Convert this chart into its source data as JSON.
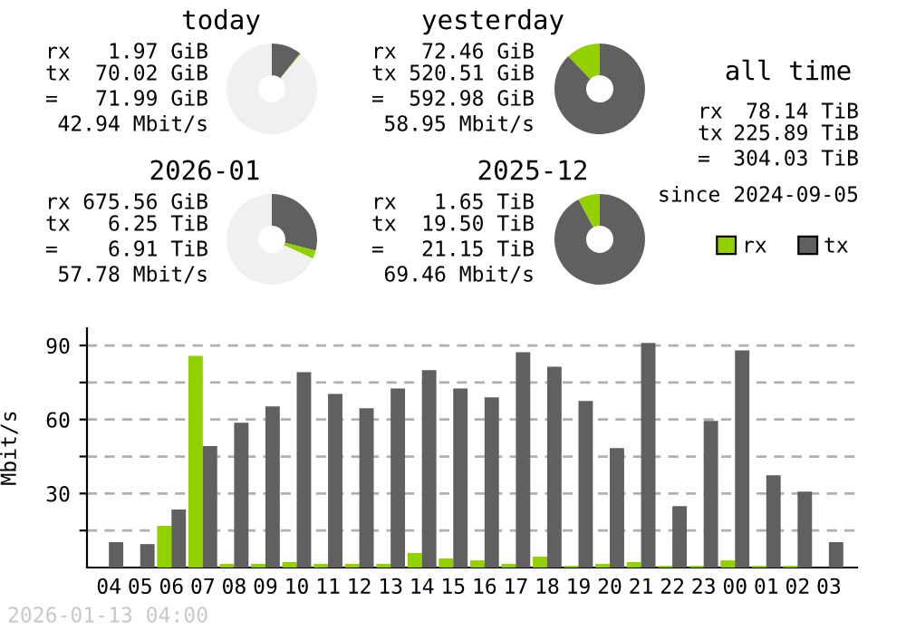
{
  "chart_data": [
    {
      "type": "donut",
      "title": "today",
      "categories": [
        null,
        null,
        null
      ],
      "values": [
        10.7,
        0.3,
        89.0
      ],
      "colors": [
        "#606060",
        "#92d000",
        "#f0f0f0"
      ],
      "annotations": [
        "rx",
        "1.97 GiB",
        "tx",
        "70.02 GiB",
        "=",
        "71.99 GiB",
        "42.94 Mbit/s"
      ]
    },
    {
      "type": "donut",
      "title": "yesterday",
      "categories": [
        null,
        null,
        null
      ],
      "values": [
        87.8,
        12.2,
        0
      ],
      "colors": [
        "#606060",
        "#92d000",
        "#f0f0f0"
      ],
      "annotations": [
        "rx",
        "72.46 GiB",
        "tx",
        "520.51 GiB",
        "=",
        "592.98 GiB",
        "58.95 Mbit/s"
      ]
    },
    {
      "type": "donut",
      "title": "2026-01",
      "categories": [
        null,
        null,
        null
      ],
      "values": [
        29.0,
        3.0,
        68.0
      ],
      "colors": [
        "#606060",
        "#92d000",
        "#f0f0f0"
      ],
      "annotations": [
        "rx",
        "675.56 GiB",
        "tx",
        "6.25 TiB",
        "=",
        "6.91 TiB",
        "57.78 Mbit/s"
      ]
    },
    {
      "type": "donut",
      "title": "2025-12",
      "categories": [
        null,
        null,
        null
      ],
      "values": [
        92.2,
        7.8,
        0
      ],
      "colors": [
        "#606060",
        "#92d000",
        "#f0f0f0"
      ],
      "annotations": [
        "rx",
        "1.65 TiB",
        "tx",
        "19.50 TiB",
        "=",
        "21.15 TiB",
        "69.46 Mbit/s"
      ]
    },
    {
      "type": "other",
      "title": "all time",
      "annotations": [
        "rx",
        "78.14 TiB",
        "tx",
        "225.89 TiB",
        "=",
        "304.03 TiB",
        "since 2024-09-05"
      ]
    },
    {
      "type": "bar",
      "ylabel": "Mbit/s",
      "legend": "top right",
      "grid": "y",
      "categories": [
        "04",
        "05",
        "06",
        "07",
        "08",
        "09",
        "10",
        "11",
        "12",
        "13",
        "14",
        "15",
        "16",
        "17",
        "18",
        "19",
        "20",
        "21",
        "22",
        "23",
        "00",
        "01",
        "02",
        "03"
      ],
      "series": [
        {
          "name": "rx",
          "color": "#92d000",
          "values": [
            0,
            0,
            16.9,
            85.8,
            1.5,
            1.5,
            2.2,
            1.5,
            1.5,
            1.5,
            5.9,
            3.7,
            2.9,
            1.5,
            4.4,
            0.7,
            1.5,
            2.2,
            0.7,
            0.7,
            2.9,
            0.7,
            0.7,
            0
          ]
        },
        {
          "name": "tx",
          "color": "#606060",
          "values": [
            10.3,
            9.5,
            23.5,
            49.2,
            58.7,
            65.3,
            79.2,
            70.4,
            64.6,
            72.6,
            80.0,
            72.6,
            69.0,
            87.3,
            81.4,
            67.5,
            48.4,
            91.0,
            24.9,
            59.4,
            88.0,
            37.4,
            30.8,
            10.3
          ]
        }
      ],
      "ylim": [
        0,
        97
      ],
      "yticks": [
        {
          "value": 15,
          "label": null
        },
        30,
        {
          "value": 45,
          "label": null
        },
        60,
        {
          "value": 75,
          "label": null
        },
        90
      ],
      "annotations": [
        "2026-01-13 04:00"
      ]
    }
  ]
}
